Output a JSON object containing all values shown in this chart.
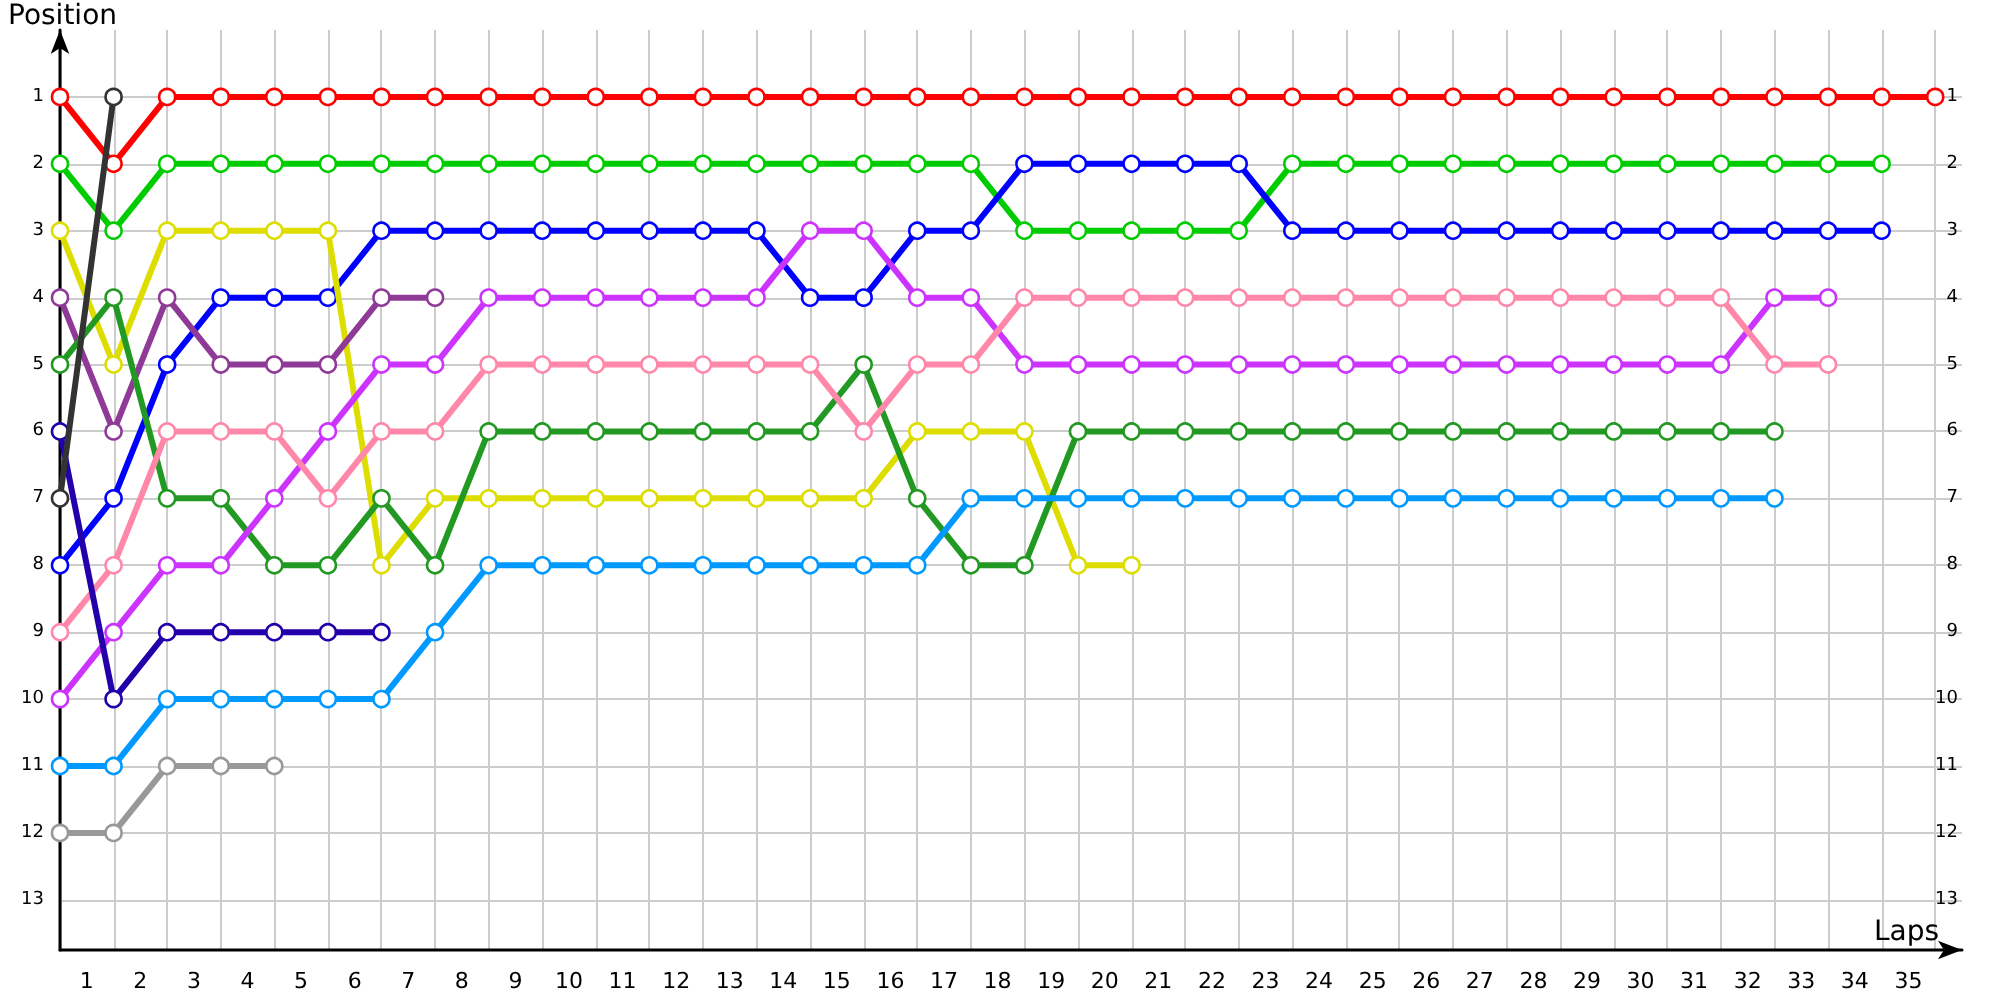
{
  "chart_data": {
    "type": "line",
    "xlabel": "Laps",
    "ylabel": "Position",
    "x": [
      0,
      1,
      2,
      3,
      4,
      5,
      6,
      7,
      8,
      9,
      10,
      11,
      12,
      13,
      14,
      15,
      16,
      17,
      18,
      19,
      20,
      21,
      22,
      23,
      24,
      25,
      26,
      27,
      28,
      29,
      30,
      31,
      32,
      33,
      34,
      35
    ],
    "xlim": [
      0,
      35.5
    ],
    "xticks": [
      {
        "value": 0,
        "label": null
      },
      {
        "value": 0.5,
        "label": "1"
      },
      {
        "value": 1,
        "label": null
      },
      {
        "value": 1.5,
        "label": "2"
      },
      {
        "value": 2,
        "label": null
      },
      {
        "value": 2.5,
        "label": "3"
      },
      {
        "value": 3,
        "label": null
      },
      {
        "value": 3.5,
        "label": "4"
      },
      {
        "value": 4,
        "label": null
      },
      {
        "value": 4.5,
        "label": "5"
      },
      {
        "value": 5,
        "label": null
      },
      {
        "value": 5.5,
        "label": "6"
      },
      {
        "value": 6,
        "label": null
      },
      {
        "value": 6.5,
        "label": "7"
      },
      {
        "value": 7,
        "label": null
      },
      {
        "value": 7.5,
        "label": "8"
      },
      {
        "value": 8,
        "label": null
      },
      {
        "value": 8.5,
        "label": "9"
      },
      {
        "value": 9,
        "label": null
      },
      {
        "value": 9.5,
        "label": "10"
      },
      {
        "value": 10,
        "label": null
      },
      {
        "value": 10.5,
        "label": "11"
      },
      {
        "value": 11,
        "label": null
      },
      {
        "value": 11.5,
        "label": "12"
      },
      {
        "value": 12,
        "label": null
      },
      {
        "value": 12.5,
        "label": "13"
      },
      {
        "value": 13,
        "label": null
      },
      {
        "value": 13.5,
        "label": "14"
      },
      {
        "value": 14,
        "label": null
      },
      {
        "value": 14.5,
        "label": "15"
      },
      {
        "value": 15,
        "label": null
      },
      {
        "value": 15.5,
        "label": "16"
      },
      {
        "value": 16,
        "label": null
      },
      {
        "value": 16.5,
        "label": "17"
      },
      {
        "value": 17,
        "label": null
      },
      {
        "value": 17.5,
        "label": "18"
      },
      {
        "value": 18,
        "label": null
      },
      {
        "value": 18.5,
        "label": "19"
      },
      {
        "value": 19,
        "label": null
      },
      {
        "value": 19.5,
        "label": "20"
      },
      {
        "value": 20,
        "label": null
      },
      {
        "value": 20.5,
        "label": "21"
      },
      {
        "value": 21,
        "label": null
      },
      {
        "value": 21.5,
        "label": "22"
      },
      {
        "value": 22,
        "label": null
      },
      {
        "value": 22.5,
        "label": "23"
      },
      {
        "value": 23,
        "label": null
      },
      {
        "value": 23.5,
        "label": "24"
      },
      {
        "value": 24,
        "label": null
      },
      {
        "value": 24.5,
        "label": "25"
      },
      {
        "value": 25,
        "label": null
      },
      {
        "value": 25.5,
        "label": "26"
      },
      {
        "value": 26,
        "label": null
      },
      {
        "value": 26.5,
        "label": "27"
      },
      {
        "value": 27,
        "label": null
      },
      {
        "value": 27.5,
        "label": "28"
      },
      {
        "value": 28,
        "label": null
      },
      {
        "value": 28.5,
        "label": "29"
      },
      {
        "value": 29,
        "label": null
      },
      {
        "value": 29.5,
        "label": "30"
      },
      {
        "value": 30,
        "label": null
      },
      {
        "value": 30.5,
        "label": "31"
      },
      {
        "value": 31,
        "label": null
      },
      {
        "value": 31.5,
        "label": "32"
      },
      {
        "value": 32,
        "label": null
      },
      {
        "value": 32.5,
        "label": "33"
      },
      {
        "value": 33,
        "label": null
      },
      {
        "value": 33.5,
        "label": "34"
      },
      {
        "value": 34,
        "label": null
      },
      {
        "value": 34.5,
        "label": "35"
      },
      {
        "value": 35,
        "label": null
      }
    ],
    "ylim": [
      13.75,
      0
    ],
    "yticks": [
      1,
      2,
      3,
      4,
      5,
      6,
      7,
      8,
      9,
      10,
      11,
      12,
      13
    ],
    "y2lim": [
      13.75,
      0
    ],
    "y2ticks": [
      1,
      2,
      3,
      4,
      5,
      6,
      7,
      8,
      9,
      10,
      11,
      12,
      13
    ],
    "grid": true,
    "marker": "circle",
    "line_style": "solid",
    "series": [
      {
        "color": "#ff0000",
        "values": [
          1,
          2,
          1,
          1,
          1,
          1,
          1,
          1,
          1,
          1,
          1,
          1,
          1,
          1,
          1,
          1,
          1,
          1,
          1,
          1,
          1,
          1,
          1,
          1,
          1,
          1,
          1,
          1,
          1,
          1,
          1,
          1,
          1,
          1,
          1,
          1
        ]
      },
      {
        "color": "#00cc00",
        "values": [
          2,
          3,
          2,
          2,
          2,
          2,
          2,
          2,
          2,
          2,
          2,
          2,
          2,
          2,
          2,
          2,
          2,
          2,
          3,
          3,
          3,
          3,
          3,
          2,
          2,
          2,
          2,
          2,
          2,
          2,
          2,
          2,
          2,
          2,
          2,
          null
        ]
      },
      {
        "color": "#0000ff",
        "values": [
          8,
          7,
          5,
          4,
          4,
          4,
          3,
          3,
          3,
          3,
          3,
          3,
          3,
          3,
          4,
          4,
          3,
          3,
          2,
          2,
          2,
          2,
          2,
          3,
          3,
          3,
          3,
          3,
          3,
          3,
          3,
          3,
          3,
          3,
          3,
          null
        ]
      },
      {
        "color": "#dddd00",
        "values": [
          3,
          5,
          3,
          3,
          3,
          3,
          8,
          7,
          7,
          7,
          7,
          7,
          7,
          7,
          7,
          7,
          6,
          6,
          6,
          8,
          8,
          null,
          null,
          null,
          null,
          null,
          null,
          null,
          null,
          null,
          null,
          null,
          null,
          null,
          null,
          null
        ]
      },
      {
        "color": "#8e3a96",
        "values": [
          4,
          6,
          4,
          5,
          5,
          5,
          4,
          4,
          null,
          null,
          null,
          null,
          null,
          null,
          null,
          null,
          null,
          null,
          null,
          null,
          null,
          null,
          null,
          null,
          null,
          null,
          null,
          null,
          null,
          null,
          null,
          null,
          null,
          null,
          null,
          null
        ]
      },
      {
        "color": "#229922",
        "values": [
          5,
          4,
          7,
          7,
          8,
          8,
          7,
          8,
          6,
          6,
          6,
          6,
          6,
          6,
          6,
          5,
          7,
          8,
          8,
          6,
          6,
          6,
          6,
          6,
          6,
          6,
          6,
          6,
          6,
          6,
          6,
          6,
          6,
          null,
          null,
          null
        ]
      },
      {
        "color": "#cc33ff",
        "values": [
          10,
          9,
          8,
          8,
          7,
          6,
          5,
          5,
          4,
          4,
          4,
          4,
          4,
          4,
          3,
          3,
          4,
          4,
          5,
          5,
          5,
          5,
          5,
          5,
          5,
          5,
          5,
          5,
          5,
          5,
          5,
          5,
          4,
          4,
          null,
          null
        ]
      },
      {
        "color": "#ff88aa",
        "values": [
          9,
          8,
          6,
          6,
          6,
          7,
          6,
          6,
          5,
          5,
          5,
          5,
          5,
          5,
          5,
          6,
          5,
          5,
          4,
          4,
          4,
          4,
          4,
          4,
          4,
          4,
          4,
          4,
          4,
          4,
          4,
          4,
          5,
          5,
          null,
          null
        ]
      },
      {
        "color": "#2200aa",
        "values": [
          6,
          10,
          9,
          9,
          9,
          9,
          9,
          null,
          null,
          null,
          null,
          null,
          null,
          null,
          null,
          null,
          null,
          null,
          null,
          null,
          null,
          null,
          null,
          null,
          null,
          null,
          null,
          null,
          null,
          null,
          null,
          null,
          null,
          null,
          null,
          null
        ]
      },
      {
        "color": "#0099ff",
        "values": [
          11,
          11,
          10,
          10,
          10,
          10,
          10,
          9,
          8,
          8,
          8,
          8,
          8,
          8,
          8,
          8,
          8,
          7,
          7,
          7,
          7,
          7,
          7,
          7,
          7,
          7,
          7,
          7,
          7,
          7,
          7,
          7,
          7,
          null,
          null,
          null
        ]
      },
      {
        "color": "#999999",
        "values": [
          12,
          12,
          11,
          11,
          11,
          null,
          null,
          null,
          null,
          null,
          null,
          null,
          null,
          null,
          null,
          null,
          null,
          null,
          null,
          null,
          null,
          null,
          null,
          null,
          null,
          null,
          null,
          null,
          null,
          null,
          null,
          null,
          null,
          null,
          null,
          null
        ]
      },
      {
        "color": "#333333",
        "values": [
          7,
          1,
          null,
          null,
          null,
          null,
          null,
          null,
          null,
          null,
          null,
          null,
          null,
          null,
          null,
          null,
          null,
          null,
          null,
          null,
          null,
          null,
          null,
          null,
          null,
          null,
          null,
          null,
          null,
          null,
          null,
          null,
          null,
          null,
          null,
          null
        ]
      }
    ]
  }
}
